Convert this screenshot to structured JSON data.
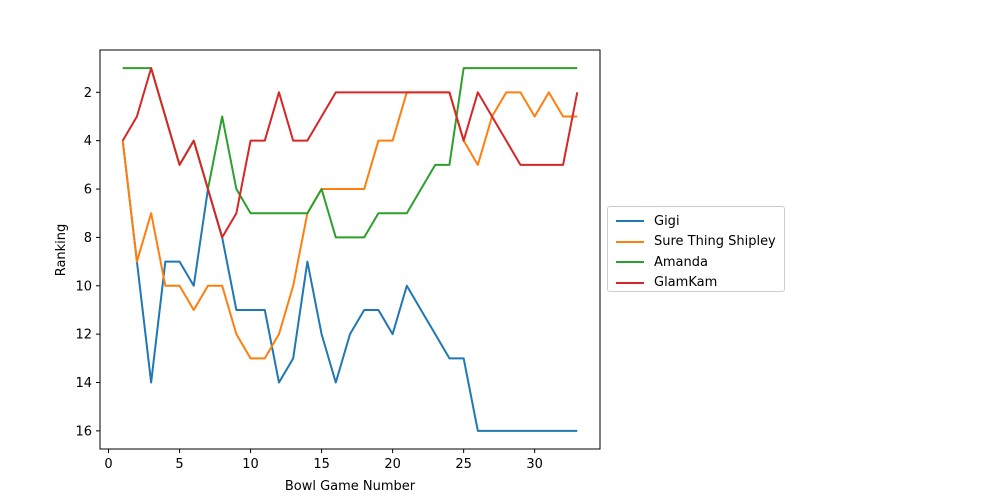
{
  "chart_data": {
    "type": "line",
    "xlabel": "Bowl Game Number",
    "ylabel": "Ranking",
    "xlim": [
      -0.6,
      34.6
    ],
    "ylim": [
      16.75,
      0.25
    ],
    "y_inverted": true,
    "grid": false,
    "legend_position": "center-right outside",
    "xticks": [
      0,
      5,
      10,
      15,
      20,
      25,
      30
    ],
    "yticks": [
      2,
      4,
      6,
      8,
      10,
      12,
      14,
      16
    ],
    "x": [
      1,
      2,
      3,
      4,
      5,
      6,
      7,
      8,
      9,
      10,
      11,
      12,
      13,
      14,
      15,
      16,
      17,
      18,
      19,
      20,
      21,
      22,
      23,
      24,
      25,
      26,
      27,
      28,
      29,
      30,
      31,
      32,
      33
    ],
    "series": [
      {
        "name": "Gigi",
        "color": "#1f77b4",
        "values": [
          4,
          9,
          14,
          9,
          9,
          10,
          6,
          8,
          11,
          11,
          11,
          14,
          13,
          9,
          12,
          14,
          12,
          11,
          11,
          12,
          10,
          11,
          12,
          13,
          13,
          16,
          16,
          16,
          16,
          16,
          16,
          16,
          16
        ]
      },
      {
        "name": "Sure Thing Shipley",
        "color": "#ff7f0e",
        "values": [
          4,
          9,
          7,
          10,
          10,
          11,
          10,
          10,
          12,
          13,
          13,
          12,
          10,
          7,
          6,
          6,
          6,
          6,
          4,
          4,
          2,
          2,
          2,
          2,
          4,
          5,
          3,
          2,
          2,
          3,
          2,
          3,
          3
        ]
      },
      {
        "name": "Amanda",
        "color": "#2ca02c",
        "values": [
          1,
          1,
          1,
          3,
          5,
          4,
          6,
          3,
          6,
          7,
          7,
          7,
          7,
          7,
          6,
          8,
          8,
          8,
          7,
          7,
          7,
          6,
          5,
          5,
          1,
          1,
          1,
          1,
          1,
          1,
          1,
          1,
          1
        ]
      },
      {
        "name": "GlamKam",
        "color": "#d62728",
        "values": [
          4,
          3,
          1,
          3,
          5,
          4,
          6,
          8,
          7,
          4,
          4,
          2,
          4,
          4,
          3,
          2,
          2,
          2,
          2,
          2,
          2,
          2,
          2,
          2,
          4,
          2,
          3,
          4,
          5,
          5,
          5,
          5,
          2
        ]
      }
    ]
  }
}
